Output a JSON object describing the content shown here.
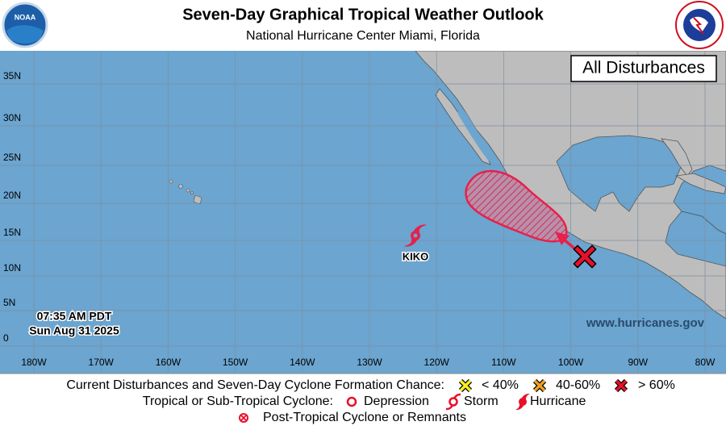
{
  "header": {
    "title": "Seven-Day Graphical Tropical Weather Outlook",
    "subtitle": "National Hurricane Center  Miami, Florida",
    "logo_text": "NOAA"
  },
  "map": {
    "panel_label": "All Disturbances",
    "timestamp": [
      "07:35 AM PDT",
      "Sun Aug 31 2025"
    ],
    "website": "www.hurricanes.gov",
    "storms": [
      {
        "name": "KIKO"
      }
    ],
    "lat_labels": [
      "35N",
      "30N",
      "25N",
      "20N",
      "15N",
      "10N",
      "5N",
      "0"
    ],
    "lon_labels": [
      "180W",
      "170W",
      "160W",
      "150W",
      "140W",
      "130W",
      "120W",
      "110W",
      "100W",
      "90W",
      "80W"
    ]
  },
  "legend": {
    "formation": {
      "label": "Current Disturbances and Seven-Day Cyclone Formation Chance:",
      "items": [
        "< 40%",
        "40-60%",
        "> 60%"
      ]
    },
    "cyclone": {
      "label": "Tropical or Sub-Tropical Cyclone:",
      "items": [
        "Depression",
        "Storm",
        "Hurricane"
      ]
    },
    "post_tropical": "Post-Tropical Cyclone or Remnants"
  }
}
